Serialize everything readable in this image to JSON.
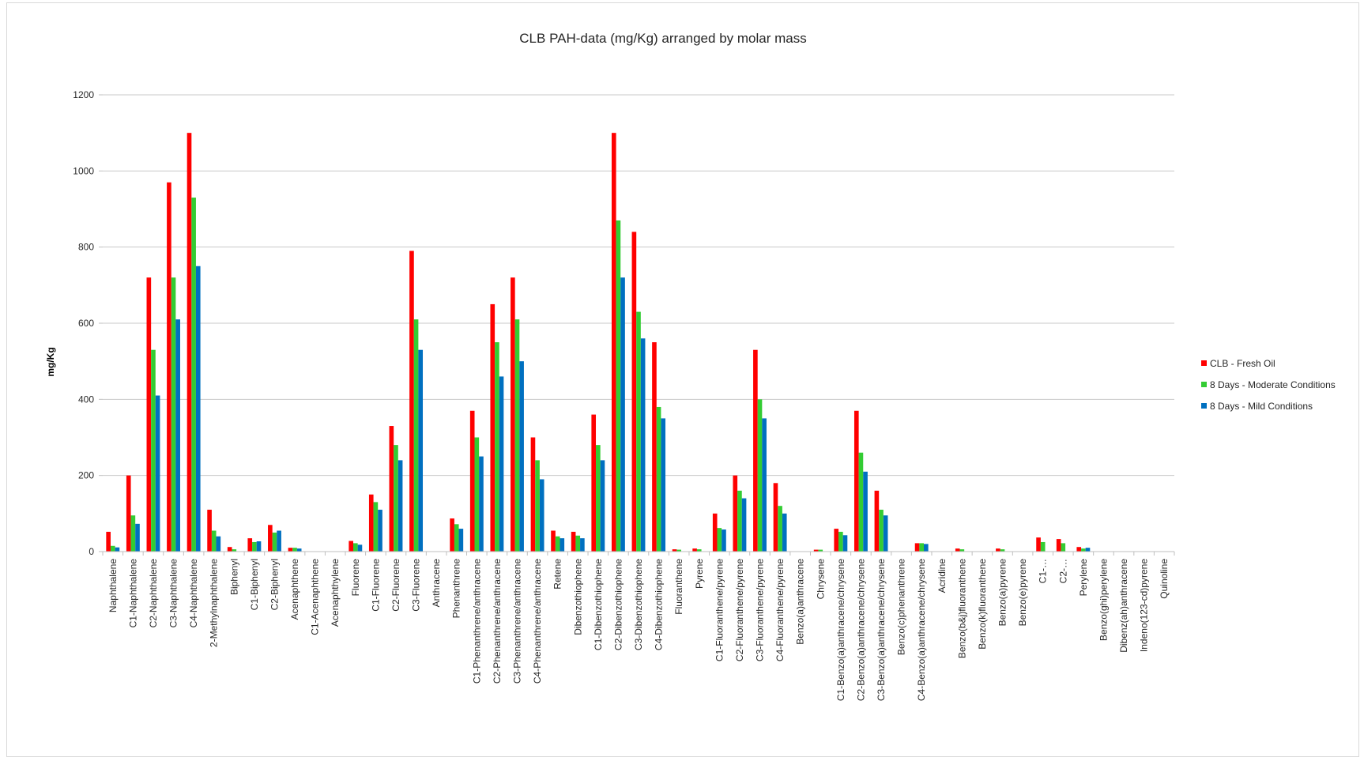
{
  "chart_data": {
    "type": "bar",
    "title": "CLB PAH-data (mg/Kg) arranged by molar mass",
    "xlabel": "",
    "ylabel": "mg/Kg",
    "ylim": [
      0,
      1200
    ],
    "yticks": [
      0,
      200,
      400,
      600,
      800,
      1000,
      1200
    ],
    "grid": true,
    "legend_position": "right",
    "categories": [
      "Naphthalene",
      "C1-Naphthalene",
      "C2-Naphthalene",
      "C3-Naphthalene",
      "C4-Naphthalene",
      "2-Methylnaphthalene",
      "Biphenyl",
      "C1-Biphenyl",
      "C2-Biphenyl",
      "Acenaphthene",
      "C1-Acenaphthene",
      "Acenaphthylene",
      "Fluorene",
      "C1-Fluorene",
      "C2-Fluorene",
      "C3-Fluorene",
      "Anthracene",
      "Phenanthrene",
      "C1-Phenanthrene/anthracene",
      "C2-Phenanthrene/anthracene",
      "C3-Phenanthrene/anthracene",
      "C4-Phenanthrene/anthracene",
      "Retene",
      "Dibenzothiophene",
      "C1-Dibenzothiophene",
      "C2-Dibenzothiophene",
      "C3-Dibenzothiophene",
      "C4-Dibenzothiophene",
      "Fluoranthene",
      "Pyrene",
      "C1-Fluoranthene/pyrene",
      "C2-Fluoranthene/pyrene",
      "C3-Fluoranthene/pyrene",
      "C4-Fluoranthene/pyrene",
      "Benzo(a)anthracene",
      "Chrysene",
      "C1-Benzo(a)anthracene/chrysene",
      "C2-Benzo(a)anthracene/chrysene",
      "C3-Benzo(a)anthracene/chrysene",
      "Benzo(c)phenanthrene",
      "C4-Benzo(a)anthracene/chrysene",
      "Acridine",
      "Benzo(b&j)fluoranthene",
      "Benzo(k)fluoranthene",
      "Benzo(a)pyrene",
      "Benzo(e)pyrene",
      "C1-…",
      "C2-…",
      "Perylene",
      "Benzo(ghi)perylene",
      "Dibenz(ah)anthracene",
      "Indeno(123-cd)pyrene",
      "Quinoline"
    ],
    "series": [
      {
        "name": "CLB - Fresh Oil",
        "color": "#ff0000",
        "values": [
          52,
          200,
          720,
          970,
          1100,
          110,
          12,
          35,
          70,
          10,
          0,
          0,
          28,
          150,
          330,
          790,
          0,
          87,
          370,
          650,
          720,
          300,
          55,
          52,
          360,
          1100,
          840,
          550,
          6,
          8,
          100,
          200,
          530,
          180,
          0,
          5,
          60,
          370,
          160,
          0,
          22,
          0,
          8,
          0,
          8,
          0,
          37,
          33,
          12,
          0,
          0,
          0,
          0
        ]
      },
      {
        "name": "8 Days - Moderate Conditions",
        "color": "#33cc33",
        "values": [
          15,
          95,
          530,
          720,
          930,
          55,
          6,
          25,
          50,
          10,
          0,
          0,
          22,
          130,
          280,
          610,
          0,
          72,
          300,
          550,
          610,
          240,
          40,
          42,
          280,
          870,
          630,
          380,
          5,
          6,
          62,
          160,
          400,
          120,
          0,
          5,
          52,
          260,
          110,
          0,
          22,
          0,
          6,
          0,
          6,
          0,
          25,
          22,
          8,
          0,
          0,
          0,
          0
        ]
      },
      {
        "name": "8 Days - Mild Conditions",
        "color": "#0070c0",
        "values": [
          11,
          73,
          410,
          610,
          750,
          40,
          0,
          27,
          55,
          8,
          0,
          0,
          18,
          110,
          240,
          530,
          0,
          60,
          250,
          460,
          500,
          190,
          35,
          35,
          240,
          720,
          560,
          350,
          0,
          0,
          58,
          140,
          350,
          100,
          0,
          0,
          43,
          210,
          95,
          0,
          20,
          0,
          0,
          0,
          0,
          0,
          0,
          0,
          10,
          0,
          0,
          0,
          0
        ]
      }
    ]
  }
}
